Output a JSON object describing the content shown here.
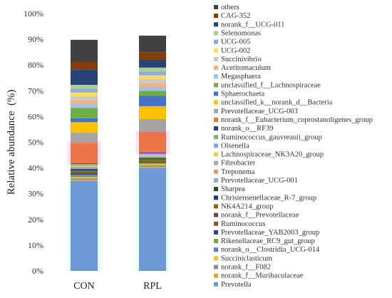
{
  "chart_data": {
    "type": "bar",
    "stacked": true,
    "percent": true,
    "ylabel": "Relative abundance  (%)",
    "xlabel": "",
    "ylim": [
      0,
      100
    ],
    "ytick_labels": [
      "0%",
      "10%",
      "20%",
      "30%",
      "40%",
      "50%",
      "60%",
      "70%",
      "80%",
      "90%",
      "100%"
    ],
    "categories": [
      "CON",
      "RPL"
    ],
    "series": [
      {
        "name": "Prevotella",
        "color": "#6f98d6",
        "values": [
          35.0,
          40.0
        ]
      },
      {
        "name": "norank_f__Muribaculaceae",
        "color": "#d9a441",
        "values": [
          0.5,
          0.5
        ]
      },
      {
        "name": "norank_f__F082",
        "color": "#8c8c8c",
        "values": [
          0.5,
          0.5
        ]
      },
      {
        "name": "Succiniclasticum",
        "color": "#f4c430",
        "values": [
          0.5,
          0.5
        ]
      },
      {
        "name": "norank_o__Clostridia_UCG-014",
        "color": "#5b7fc0",
        "values": [
          0.5,
          0.3
        ]
      },
      {
        "name": "Rikenellaceae_RC9_gut_group",
        "color": "#6aa84f",
        "values": [
          0.4,
          0.3
        ]
      },
      {
        "name": "Prevotellaceae_YAB2003_group",
        "color": "#2f3f8f",
        "values": [
          0.4,
          0.3
        ]
      },
      {
        "name": "Ruminococcus",
        "color": "#8a5a2b",
        "values": [
          0.4,
          0.3
        ]
      },
      {
        "name": "norank_f__Prevotellaceae",
        "color": "#555555",
        "values": [
          0.4,
          0.3
        ]
      },
      {
        "name": "NK4A214_group",
        "color": "#7a6a1a",
        "values": [
          0.4,
          0.3
        ]
      },
      {
        "name": "Christensenellaceae_R-7_group",
        "color": "#1f3a70",
        "values": [
          0.4,
          0.3
        ]
      },
      {
        "name": "Sharpea",
        "color": "#2e4d1f",
        "values": [
          0.3,
          0.3
        ]
      },
      {
        "name": "Prevotellaceae_UCG-001",
        "color": "#8ea9db",
        "values": [
          0.3,
          0.3
        ]
      },
      {
        "name": "Treponema",
        "color": "#c9a86a",
        "values": [
          0.3,
          0.3
        ]
      },
      {
        "name": "Fibrobacter",
        "color": "#a9a9a9",
        "values": [
          0.3,
          0.3
        ]
      },
      {
        "name": "Lachnospiraceae_NK3A20_group",
        "color": "#e8d44d",
        "values": [
          0.3,
          0.3
        ]
      },
      {
        "name": "Olsenella",
        "color": "#7fa7e0",
        "values": [
          0.3,
          0.3
        ]
      },
      {
        "name": "Ruminococcus_gauvreauii_group",
        "color": "#7cb96a",
        "values": [
          0.3,
          0.3
        ]
      },
      {
        "name": "norank_o__RF39",
        "color": "#2a3f8a",
        "values": [
          0.3,
          0.3
        ]
      },
      {
        "name": "norank_f__Eubacterium_coprostanoligenes_group",
        "color": "#e8792a",
        "values": [
          8.0,
          8.0
        ]
      },
      {
        "name": "Prevotellaceae_UCG-003",
        "color": "#a5a5a5",
        "values": [
          4.0,
          5.0
        ]
      },
      {
        "name": "unclassified_k__norank_d__Bacteria",
        "color": "#ffc000",
        "values": [
          4.0,
          5.0
        ]
      },
      {
        "name": "Sphaerochaeta",
        "color": "#4472c4",
        "values": [
          1.5,
          4.0
        ]
      },
      {
        "name": "unclassified_f__Lachnospiraceae",
        "color": "#70ad47",
        "values": [
          4.0,
          2.0
        ]
      },
      {
        "name": "Megasphaera",
        "color": "#9dc3e6",
        "values": [
          1.5,
          1.5
        ]
      },
      {
        "name": "Acetitomaculum",
        "color": "#f4b183",
        "values": [
          1.5,
          1.5
        ]
      },
      {
        "name": "Succinivibrio",
        "color": "#c9c9c9",
        "values": [
          1.5,
          1.5
        ]
      },
      {
        "name": "UCG-002",
        "color": "#ffd966",
        "values": [
          1.5,
          1.5
        ]
      },
      {
        "name": "UCG-005",
        "color": "#8faadc",
        "values": [
          1.5,
          1.5
        ]
      },
      {
        "name": "Selenomonas",
        "color": "#a9d18e",
        "values": [
          1.5,
          1.5
        ]
      },
      {
        "name": "norank_f__UCG-011",
        "color": "#264478",
        "values": [
          6.0,
          3.0
        ]
      },
      {
        "name": "CAG-352",
        "color": "#843c0c",
        "values": [
          3.0,
          3.0
        ]
      },
      {
        "name": "others",
        "color": "#404040",
        "values": [
          8.5,
          6.4
        ]
      }
    ]
  }
}
